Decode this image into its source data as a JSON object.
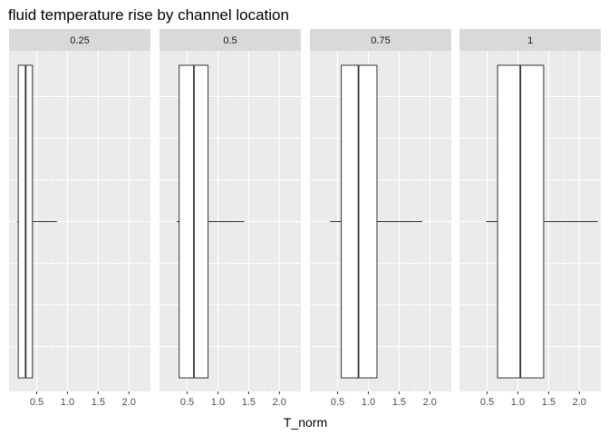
{
  "chart_data": {
    "type": "boxplot",
    "title": "fluid temperature rise by channel location",
    "xlabel": "T_norm",
    "ylabel": "",
    "xlim": [
      0.05,
      2.35
    ],
    "x_ticks": [
      0.5,
      1.0,
      1.5,
      2.0
    ],
    "x_tick_labels": [
      "0.5",
      "1.0",
      "1.5",
      "2.0"
    ],
    "facets": [
      {
        "label": "0.25",
        "whisker_low": 0.18,
        "q1": 0.2,
        "median": 0.32,
        "q3": 0.43,
        "whisker_high": 0.83
      },
      {
        "label": "0.5",
        "whisker_low": 0.33,
        "q1": 0.37,
        "median": 0.61,
        "q3": 0.84,
        "whisker_high": 1.43
      },
      {
        "label": "0.75",
        "whisker_low": 0.38,
        "q1": 0.56,
        "median": 0.84,
        "q3": 1.14,
        "whisker_high": 1.88
      },
      {
        "label": "1",
        "whisker_low": 0.48,
        "q1": 0.67,
        "median": 1.04,
        "q3": 1.42,
        "whisker_high": 2.3
      }
    ]
  }
}
